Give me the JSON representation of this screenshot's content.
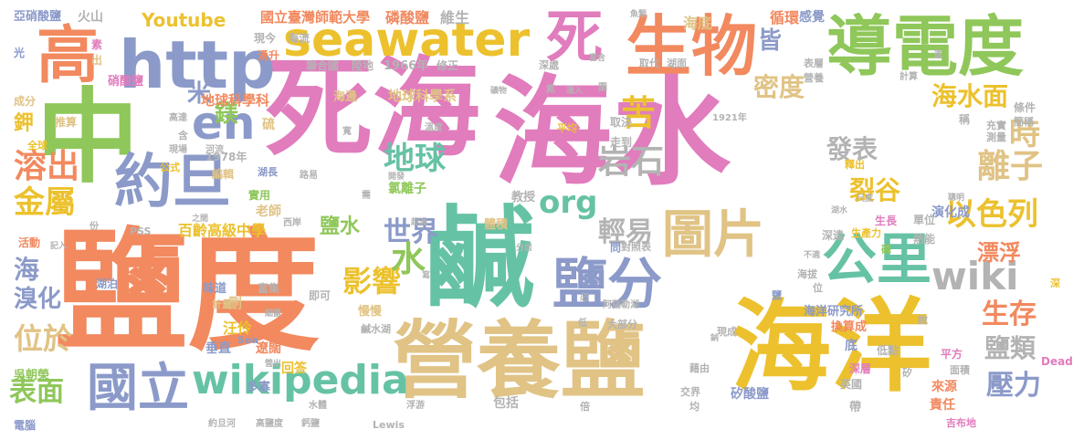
{
  "palette": {
    "pink": "#e17cbd",
    "orange": "#f2895f",
    "yellow": "#ecc12d",
    "green": "#8fc75a",
    "teal": "#66c2a5",
    "purple": "#8b9ac9",
    "tan": "#e0c385",
    "gray": "#b3b3b3"
  },
  "words": [
    {
      "text": "死海",
      "color": "#e17cbd"
    },
    {
      "text": "海水",
      "color": "#e17cbd"
    },
    {
      "text": "鹽度",
      "color": "#f2895f"
    },
    {
      "text": "營養鹽",
      "color": "#e0c385"
    },
    {
      "text": "海洋",
      "color": "#ecc12d"
    },
    {
      "text": "導電度",
      "color": "#8fc75a"
    },
    {
      "text": "中",
      "color": "#8fc75a"
    },
    {
      "text": "鹹",
      "color": "#66c2a5"
    },
    {
      "text": "生物",
      "color": "#f2895f"
    },
    {
      "text": "高",
      "color": "#f2895f"
    },
    {
      "text": "http",
      "color": "#8b9ac9"
    },
    {
      "text": "seawater",
      "color": "#ecc12d"
    },
    {
      "text": "死",
      "color": "#e17cbd"
    },
    {
      "text": "約旦",
      "color": "#8b9ac9"
    },
    {
      "text": "en",
      "color": "#8b9ac9"
    },
    {
      "text": "鹽分",
      "color": "#8b9ac9"
    },
    {
      "text": "公里",
      "color": "#66c2a5"
    },
    {
      "text": "圖片",
      "color": "#e0c385"
    },
    {
      "text": "國立",
      "color": "#8b9ac9"
    },
    {
      "text": "wikipedia",
      "color": "#66c2a5"
    },
    {
      "text": "wiki",
      "color": "#b3b3b3"
    },
    {
      "text": "時",
      "color": "#e0c385"
    },
    {
      "text": "離子",
      "color": "#e0c385"
    },
    {
      "text": "地球",
      "color": "#66c2a5"
    },
    {
      "text": "溶出",
      "color": "#f2895f"
    },
    {
      "text": "金屬",
      "color": "#ecc12d"
    },
    {
      "text": "苦",
      "color": "#ecc12d"
    },
    {
      "text": "岩石",
      "color": "#b3b3b3"
    },
    {
      "text": "org",
      "color": "#66c2a5"
    },
    {
      "text": "以色列",
      "color": "#ecc12d"
    },
    {
      "text": "海水面",
      "color": "#ecc12d"
    },
    {
      "text": "生存",
      "color": "#f2895f"
    },
    {
      "text": "壓力",
      "color": "#8b9ac9"
    },
    {
      "text": "鹽類",
      "color": "#b3b3b3"
    },
    {
      "text": "表面",
      "color": "#8fc75a"
    },
    {
      "text": "影響",
      "color": "#ecc12d"
    },
    {
      "text": "位於",
      "color": "#e0c385"
    },
    {
      "text": "世界",
      "color": "#8b9ac9"
    },
    {
      "text": "輕易",
      "color": "#b3b3b3"
    },
    {
      "text": "裂谷",
      "color": "#ecc12d"
    },
    {
      "text": "發表",
      "color": "#b3b3b3"
    },
    {
      "text": "密度",
      "color": "#e0c385"
    },
    {
      "text": "漂浮",
      "color": "#f2895f"
    },
    {
      "text": "水",
      "color": "#8fc75a"
    },
    {
      "text": "Youtube",
      "color": "#ecc12d"
    },
    {
      "text": "皆",
      "color": "#8b9ac9"
    },
    {
      "text": "米",
      "color": "#8b9ac9"
    },
    {
      "text": "鎂",
      "color": "#8fc75a"
    },
    {
      "text": "鉀",
      "color": "#ecc12d"
    },
    {
      "text": "海",
      "color": "#8b9ac9"
    },
    {
      "text": "溴化",
      "color": "#8b9ac9"
    },
    {
      "text": "鹽水",
      "color": "#8fc75a"
    },
    {
      "text": "百齡高級中學",
      "color": "#ecc12d"
    },
    {
      "text": "地球科學科",
      "color": "#f2895f"
    },
    {
      "text": "地球科學系",
      "color": "#e0c385"
    },
    {
      "text": "國立臺灣師範大學",
      "color": "#f2895f"
    },
    {
      "text": "磷酸鹽",
      "color": "#f2895f"
    },
    {
      "text": "海底",
      "color": "#e0c385"
    },
    {
      "text": "循環",
      "color": "#f2895f"
    },
    {
      "text": "維生",
      "color": "#b3b3b3"
    },
    {
      "text": "感覺",
      "color": "#8b9ac9"
    },
    {
      "text": "亞硝酸鹽",
      "color": "#8b9ac9"
    },
    {
      "text": "火山",
      "color": "#b3b3b3"
    },
    {
      "text": "硝酸鹽",
      "color": "#e17cbd"
    },
    {
      "text": "演化成",
      "color": "#8b9ac9"
    },
    {
      "text": "老師",
      "color": "#e0c385"
    },
    {
      "text": "海洋研究所",
      "color": "#8b9ac9"
    },
    {
      "text": "矽酸鹽",
      "color": "#8b9ac9"
    },
    {
      "text": "責任",
      "color": "#f2895f"
    },
    {
      "text": "來源",
      "color": "#f2895f"
    },
    {
      "text": "汪伶",
      "color": "#ecc12d"
    },
    {
      "text": "刪",
      "color": "#e0c385"
    },
    {
      "text": "垂直",
      "color": "#8b9ac9"
    },
    {
      "text": "遼闊",
      "color": "#f2895f"
    },
    {
      "text": "回答",
      "color": "#ecc12d"
    },
    {
      "text": "多寡",
      "color": "#8b9ac9"
    },
    {
      "text": "吳朝榮",
      "color": "#8fc75a"
    },
    {
      "text": "包括",
      "color": "#b3b3b3"
    },
    {
      "text": "體積",
      "color": "#e0c385"
    },
    {
      "text": "氯離子",
      "color": "#8fc75a"
    },
    {
      "text": "教授",
      "color": "#b3b3b3"
    },
    {
      "text": "海邊",
      "color": "#e0c385"
    },
    {
      "text": "1966年",
      "color": "#b3b3b3"
    },
    {
      "text": "陸地",
      "color": "#b3b3b3"
    },
    {
      "text": "聯合國",
      "color": "#b3b3b3"
    },
    {
      "text": "現今",
      "color": "#b3b3b3"
    },
    {
      "text": "海流",
      "color": "#b3b3b3"
    },
    {
      "text": "湧升",
      "color": "#f2895f"
    },
    {
      "text": "修正",
      "color": "#b3b3b3"
    },
    {
      "text": "過程",
      "color": "#e17cbd"
    },
    {
      "text": "取決",
      "color": "#b3b3b3"
    },
    {
      "text": "走到",
      "color": "#b3b3b3"
    },
    {
      "text": "條件",
      "color": "#b3b3b3"
    },
    {
      "text": "稱",
      "color": "#b3b3b3"
    },
    {
      "text": "測量",
      "color": "#b3b3b3"
    },
    {
      "text": "單位",
      "color": "#b3b3b3"
    },
    {
      "text": "熱能",
      "color": "#b3b3b3"
    },
    {
      "text": "生長",
      "color": "#e17cbd"
    },
    {
      "text": "深逵",
      "color": "#b3b3b3"
    },
    {
      "text": "底",
      "color": "#8b9ac9"
    },
    {
      "text": "換算成",
      "color": "#f2895f"
    },
    {
      "text": "低點",
      "color": "#b3b3b3"
    },
    {
      "text": "深層",
      "color": "#e17cbd"
    },
    {
      "text": "英國",
      "color": "#b3b3b3"
    },
    {
      "text": "面積",
      "color": "#b3b3b3"
    },
    {
      "text": "平方",
      "color": "#e17cbd"
    },
    {
      "text": "吉布地",
      "color": "#e17cbd"
    },
    {
      "text": "味道",
      "color": "#8b9ac9"
    },
    {
      "text": "富集",
      "color": "#b3b3b3"
    },
    {
      "text": "計量",
      "color": "#e0c385"
    },
    {
      "text": "慢慢",
      "color": "#e0c385"
    },
    {
      "text": "即可",
      "color": "#b3b3b3"
    },
    {
      "text": "問",
      "color": "#8b9ac9"
    },
    {
      "text": "對照表",
      "color": "#b3b3b3"
    },
    {
      "text": "大部分",
      "color": "#b3b3b3"
    },
    {
      "text": "現成",
      "color": "#b3b3b3"
    },
    {
      "text": "鹹水湖",
      "color": "#b3b3b3"
    },
    {
      "text": "阿薩勒湖",
      "color": "#b3b3b3"
    },
    {
      "text": "活動",
      "color": "#f2895f"
    },
    {
      "text": "湖泊",
      "color": "#8b9ac9"
    },
    {
      "text": "成分",
      "color": "#e0c385"
    },
    {
      "text": "推算",
      "color": "#e0c385"
    },
    {
      "text": "光",
      "color": "#8b9ac9"
    },
    {
      "text": "素",
      "color": "#e17cbd"
    },
    {
      "text": "出",
      "color": "#e0c385"
    },
    {
      "text": "全球",
      "color": "#ecc12d"
    },
    {
      "text": "公式",
      "color": "#ecc12d"
    },
    {
      "text": "1978年",
      "color": "#b3b3b3"
    },
    {
      "text": "編輯",
      "color": "#e0c385"
    },
    {
      "text": "實用",
      "color": "#8fc75a"
    },
    {
      "text": "湖長",
      "color": "#8b9ac9"
    },
    {
      "text": "路易",
      "color": "#b3b3b3"
    },
    {
      "text": "河流",
      "color": "#b3b3b3"
    },
    {
      "text": "現場",
      "color": "#b3b3b3"
    },
    {
      "text": "含",
      "color": "#b3b3b3"
    },
    {
      "text": "高達",
      "color": "#b3b3b3"
    },
    {
      "text": "硫",
      "color": "#e0c385"
    },
    {
      "text": "溫度",
      "color": "#b3b3b3"
    },
    {
      "text": "約旦河",
      "color": "#b3b3b3"
    },
    {
      "text": "高鹽度",
      "color": "#b3b3b3"
    },
    {
      "text": "鈣鹽",
      "color": "#b3b3b3"
    },
    {
      "text": "水體",
      "color": "#b3b3b3"
    },
    {
      "text": "Lewis",
      "color": "#b3b3b3"
    },
    {
      "text": "Sea",
      "color": "#8b9ac9"
    },
    {
      "text": "Dead",
      "color": "#e17cbd"
    },
    {
      "text": "PSS",
      "color": "#b3b3b3"
    },
    {
      "text": "1921年",
      "color": "#b3b3b3"
    },
    {
      "text": "電腦",
      "color": "#8b9ac9"
    },
    {
      "text": "西岸",
      "color": "#b3b3b3"
    },
    {
      "text": "表層",
      "color": "#b3b3b3"
    },
    {
      "text": "營養",
      "color": "#b3b3b3"
    },
    {
      "text": "深處",
      "color": "#b3b3b3"
    },
    {
      "text": "湖面",
      "color": "#b3b3b3"
    },
    {
      "text": "取代",
      "color": "#b3b3b3"
    },
    {
      "text": "富含",
      "color": "#b3b3b3"
    },
    {
      "text": "計算",
      "color": "#b3b3b3"
    },
    {
      "text": "充實",
      "color": "#b3b3b3"
    },
    {
      "text": "簡稱",
      "color": "#b3b3b3"
    },
    {
      "text": "魚類",
      "color": "#b3b3b3"
    },
    {
      "text": "平均",
      "color": "#ecc12d"
    },
    {
      "text": "倍",
      "color": "#b3b3b3"
    },
    {
      "text": "均",
      "color": "#b3b3b3"
    },
    {
      "text": "帶",
      "color": "#b3b3b3"
    },
    {
      "text": "矽",
      "color": "#b3b3b3"
    },
    {
      "text": "鹽",
      "color": "#8b9ac9"
    },
    {
      "text": "說",
      "color": "#b3b3b3"
    },
    {
      "text": "深",
      "color": "#ecc12d"
    },
    {
      "text": "磷",
      "color": "#8fc75a"
    },
    {
      "text": "位",
      "color": "#b3b3b3"
    },
    {
      "text": "海拔",
      "color": "#b3b3b3"
    },
    {
      "text": "釋出",
      "color": "#ecc12d"
    },
    {
      "text": "生產力",
      "color": "#ecc12d"
    },
    {
      "text": "藉由",
      "color": "#b3b3b3"
    },
    {
      "text": "交界",
      "color": "#b3b3b3"
    },
    {
      "text": "必",
      "color": "#b3b3b3"
    },
    {
      "text": "低",
      "color": "#b3b3b3"
    },
    {
      "text": "分居",
      "color": "#b3b3b3"
    },
    {
      "text": "寫",
      "color": "#b3b3b3"
    },
    {
      "text": "需",
      "color": "#b3b3b3"
    },
    {
      "text": "寬",
      "color": "#b3b3b3"
    },
    {
      "text": "份",
      "color": "#b3b3b3"
    },
    {
      "text": "記入",
      "color": "#b3b3b3"
    },
    {
      "text": "尺度",
      "color": "#b3b3b3"
    },
    {
      "text": "聰明",
      "color": "#b3b3b3"
    },
    {
      "text": "湖水",
      "color": "#b3b3b3"
    },
    {
      "text": "礦物",
      "color": "#b3b3b3"
    },
    {
      "text": "氮",
      "color": "#b3b3b3"
    },
    {
      "text": "圖",
      "color": "#b3b3b3"
    },
    {
      "text": "逵",
      "color": "#b3b3b3"
    },
    {
      "text": "運入",
      "color": "#b3b3b3"
    },
    {
      "text": "浮游",
      "color": "#b3b3b3"
    },
    {
      "text": "細菌",
      "color": "#b3b3b3"
    },
    {
      "text": "之間",
      "color": "#b3b3b3"
    },
    {
      "text": "開發",
      "color": "#b3b3b3"
    },
    {
      "text": "不適",
      "color": "#b3b3b3"
    },
    {
      "text": "超過",
      "color": "#b3b3b3"
    },
    {
      "text": "營出",
      "color": "#b3b3b3"
    },
    {
      "text": "鈉",
      "color": "#b3b3b3"
    }
  ]
}
